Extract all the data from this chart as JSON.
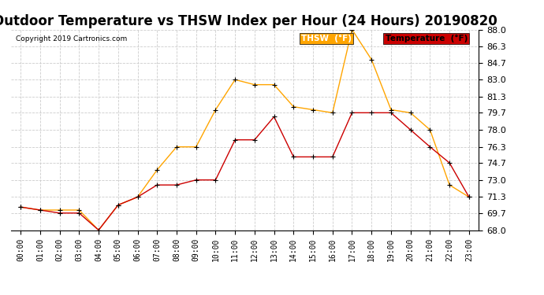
{
  "title": "Outdoor Temperature vs THSW Index per Hour (24 Hours) 20190820",
  "copyright": "Copyright 2019 Cartronics.com",
  "hours": [
    "00:00",
    "01:00",
    "02:00",
    "03:00",
    "04:00",
    "05:00",
    "06:00",
    "07:00",
    "08:00",
    "09:00",
    "10:00",
    "11:00",
    "12:00",
    "13:00",
    "14:00",
    "15:00",
    "16:00",
    "17:00",
    "18:00",
    "19:00",
    "20:00",
    "21:00",
    "22:00",
    "23:00"
  ],
  "thsw": [
    70.3,
    70.0,
    70.0,
    70.0,
    68.0,
    70.5,
    71.3,
    74.0,
    76.3,
    76.3,
    80.0,
    83.0,
    82.5,
    82.5,
    80.3,
    80.0,
    79.7,
    88.0,
    85.0,
    80.0,
    79.7,
    78.0,
    72.5,
    71.3
  ],
  "temperature": [
    70.3,
    70.0,
    69.7,
    69.7,
    68.0,
    70.5,
    71.3,
    72.5,
    72.5,
    73.0,
    73.0,
    77.0,
    77.0,
    79.3,
    75.3,
    75.3,
    75.3,
    79.7,
    79.7,
    79.7,
    78.0,
    76.3,
    74.7,
    71.3
  ],
  "thsw_color": "#FFA500",
  "temp_color": "#CC0000",
  "marker": "+",
  "ylim": [
    68.0,
    88.0
  ],
  "yticks": [
    68.0,
    69.7,
    71.3,
    73.0,
    74.7,
    76.3,
    78.0,
    79.7,
    81.3,
    83.0,
    84.7,
    86.3,
    88.0
  ],
  "bg_color": "#ffffff",
  "grid_color": "#cccccc",
  "title_fontsize": 12,
  "legend_thsw": "THSW  (°F)",
  "legend_temp": "Temperature  (°F)"
}
